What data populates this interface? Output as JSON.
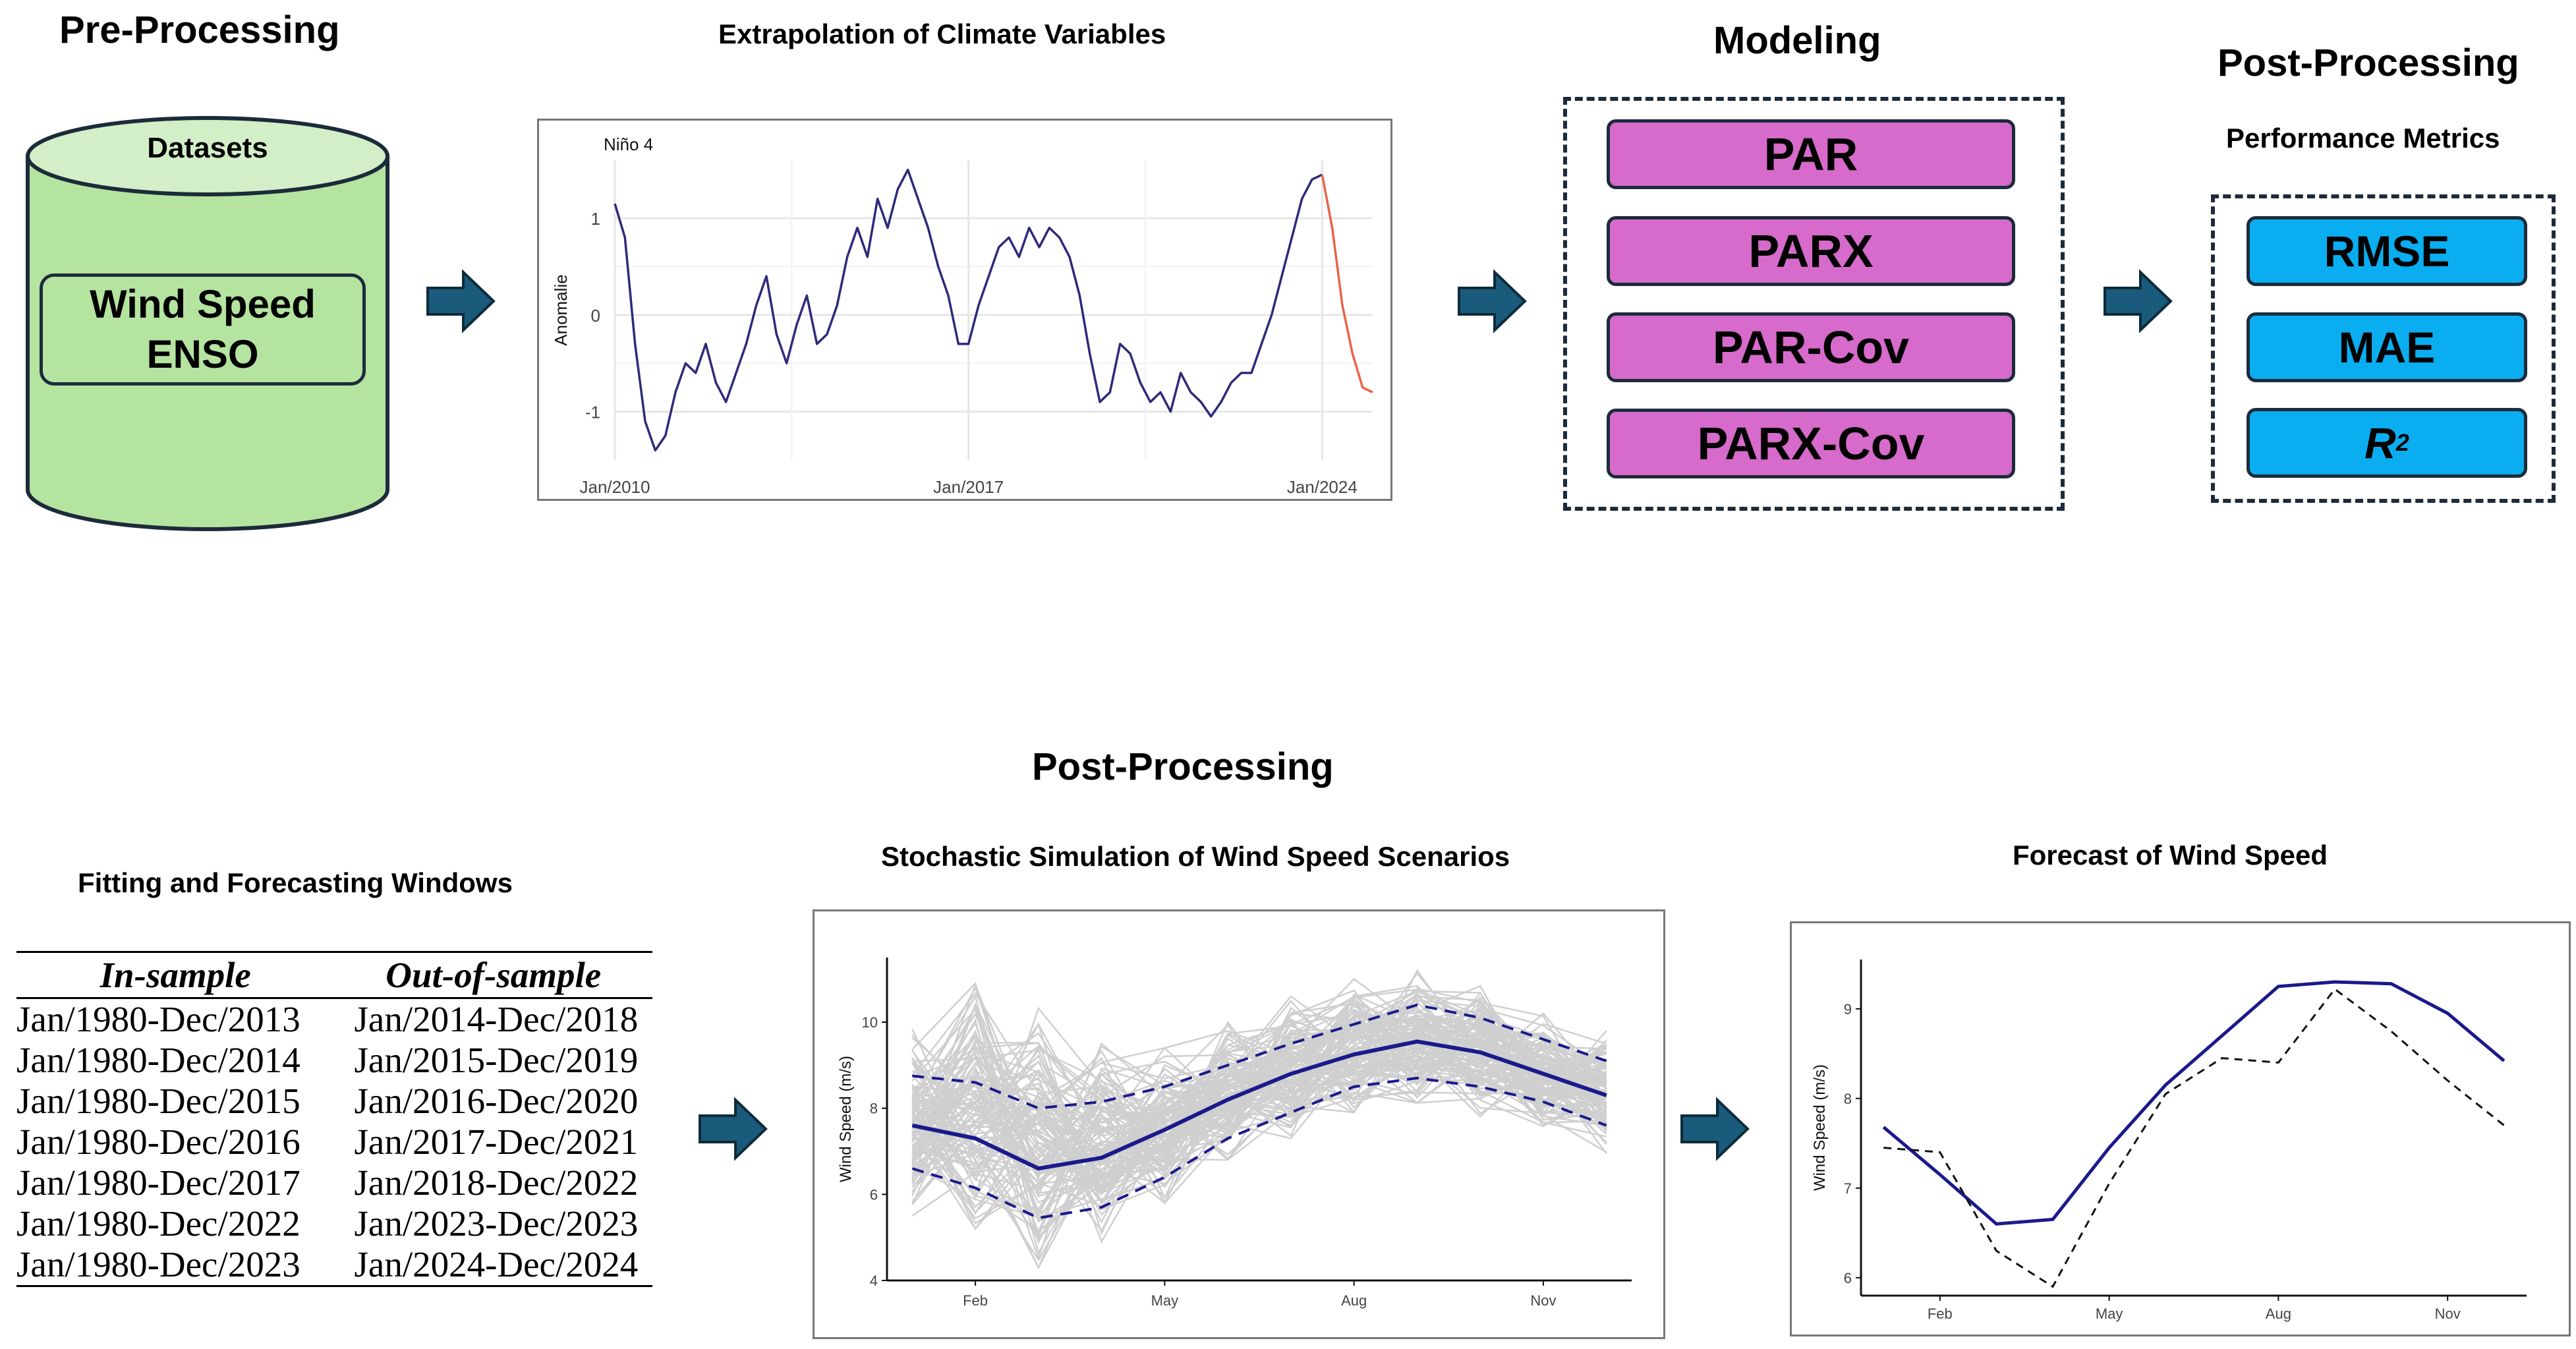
{
  "preprocessing": {
    "title": "Pre-Processing",
    "cylinder_label": "Datasets",
    "inner_line1": "Wind Speed",
    "inner_line2": "ENSO"
  },
  "extrapolation": {
    "title": "Extrapolation of Climate Variables",
    "chart_data": {
      "type": "line",
      "title": "Niño 4",
      "ylabel": "Anomalie",
      "xlabel": "",
      "x_ticks": [
        "Jan/2010",
        "Jan/2017",
        "Jan/2024"
      ],
      "y_ticks": [
        "1",
        "0",
        "-1"
      ],
      "ylim": [
        -1.5,
        1.6
      ],
      "xlim": [
        2010,
        2025
      ],
      "series": [
        {
          "name": "observed",
          "color": "#2e2a7a",
          "x": [
            2010.0,
            2010.2,
            2010.4,
            2010.6,
            2010.8,
            2011.0,
            2011.2,
            2011.4,
            2011.6,
            2011.8,
            2012.0,
            2012.2,
            2012.4,
            2012.6,
            2012.8,
            2013.0,
            2013.2,
            2013.4,
            2013.6,
            2013.8,
            2014.0,
            2014.2,
            2014.4,
            2014.6,
            2014.8,
            2015.0,
            2015.2,
            2015.4,
            2015.6,
            2015.8,
            2016.0,
            2016.2,
            2016.4,
            2016.6,
            2016.8,
            2017.0,
            2017.2,
            2017.4,
            2017.6,
            2017.8,
            2018.0,
            2018.2,
            2018.4,
            2018.6,
            2018.8,
            2019.0,
            2019.2,
            2019.4,
            2019.6,
            2019.8,
            2020.0,
            2020.2,
            2020.4,
            2020.6,
            2020.8,
            2021.0,
            2021.2,
            2021.4,
            2021.6,
            2021.8,
            2022.0,
            2022.2,
            2022.4,
            2022.6,
            2022.8,
            2023.0,
            2023.2,
            2023.4,
            2023.6,
            2023.8,
            2024.0
          ],
          "values": [
            1.15,
            0.8,
            -0.3,
            -1.1,
            -1.4,
            -1.25,
            -0.8,
            -0.5,
            -0.6,
            -0.3,
            -0.7,
            -0.9,
            -0.6,
            -0.3,
            0.1,
            0.4,
            -0.2,
            -0.5,
            -0.1,
            0.2,
            -0.3,
            -0.2,
            0.1,
            0.6,
            0.9,
            0.6,
            1.2,
            0.9,
            1.3,
            1.5,
            1.2,
            0.9,
            0.5,
            0.2,
            -0.3,
            -0.3,
            0.1,
            0.4,
            0.7,
            0.8,
            0.6,
            0.9,
            0.7,
            0.9,
            0.8,
            0.6,
            0.2,
            -0.4,
            -0.9,
            -0.8,
            -0.3,
            -0.4,
            -0.7,
            -0.9,
            -0.8,
            -1.0,
            -0.6,
            -0.8,
            -0.9,
            -1.05,
            -0.9,
            -0.7,
            -0.6,
            -0.6,
            -0.3,
            0.0,
            0.4,
            0.8,
            1.2,
            1.4,
            1.45
          ]
        },
        {
          "name": "extrapolated",
          "color": "#e8644a",
          "x": [
            2024.0,
            2024.2,
            2024.4,
            2024.6,
            2024.8,
            2025.0
          ],
          "values": [
            1.45,
            0.9,
            0.1,
            -0.4,
            -0.75,
            -0.8
          ]
        }
      ]
    }
  },
  "modeling": {
    "title": "Modeling",
    "models": [
      "PAR",
      "PARX",
      "PAR-Cov",
      "PARX-Cov"
    ]
  },
  "postprocessing_top": {
    "title": "Post-Processing",
    "subtitle": "Performance Metrics",
    "metrics": [
      "RMSE",
      "MAE",
      "R"
    ],
    "r2_superscript": "2"
  },
  "postprocessing_bottom": {
    "title": "Post-Processing"
  },
  "windows": {
    "title": "Fitting and Forecasting Windows",
    "headers": [
      "In-sample",
      "Out-of-sample"
    ],
    "rows": [
      [
        "Jan/1980-Dec/2013",
        "Jan/2014-Dec/2018"
      ],
      [
        "Jan/1980-Dec/2014",
        "Jan/2015-Dec/2019"
      ],
      [
        "Jan/1980-Dec/2015",
        "Jan/2016-Dec/2020"
      ],
      [
        "Jan/1980-Dec/2016",
        "Jan/2017-Dec/2021"
      ],
      [
        "Jan/1980-Dec/2017",
        "Jan/2018-Dec/2022"
      ],
      [
        "Jan/1980-Dec/2022",
        "Jan/2023-Dec/2023"
      ],
      [
        "Jan/1980-Dec/2023",
        "Jan/2024-Dec/2024"
      ]
    ]
  },
  "simulation": {
    "title": "Stochastic Simulation of Wind Speed Scenarios",
    "chart_data": {
      "type": "line",
      "ylabel": "Wind Speed (m/s)",
      "x_ticks": [
        "Feb",
        "May",
        "Aug",
        "Nov"
      ],
      "y_ticks": [
        "4",
        "6",
        "8",
        "10"
      ],
      "ylim": [
        4,
        11.5
      ],
      "months": [
        1,
        2,
        3,
        4,
        5,
        6,
        7,
        8,
        9,
        10,
        11,
        12
      ],
      "series": [
        {
          "name": "mean",
          "color": "#1a1a8c",
          "style": "solid",
          "values": [
            7.6,
            7.3,
            6.6,
            6.85,
            7.5,
            8.2,
            8.8,
            9.25,
            9.55,
            9.3,
            8.8,
            8.3
          ]
        },
        {
          "name": "upper",
          "color": "#1a1a8c",
          "style": "dashed",
          "values": [
            8.75,
            8.6,
            8.0,
            8.15,
            8.5,
            9.0,
            9.5,
            9.95,
            10.4,
            10.1,
            9.6,
            9.1
          ]
        },
        {
          "name": "lower",
          "color": "#1a1a8c",
          "style": "dashed",
          "values": [
            6.6,
            6.15,
            5.45,
            5.7,
            6.4,
            7.3,
            7.9,
            8.5,
            8.7,
            8.5,
            8.15,
            7.6
          ]
        }
      ],
      "scenario_band": {
        "color": "#cfcfcf",
        "min": [
          5.5,
          5.2,
          4.3,
          4.9,
          5.8,
          6.8,
          7.3,
          7.9,
          8.0,
          7.8,
          7.4,
          6.9
        ],
        "max": [
          10.1,
          11.0,
          10.4,
          9.5,
          9.4,
          10.0,
          10.6,
          11.0,
          11.2,
          10.9,
          10.2,
          9.8
        ]
      }
    }
  },
  "forecast": {
    "title": "Forecast of Wind Speed",
    "chart_data": {
      "type": "line",
      "ylabel": "Wind Speed (m/s)",
      "x_ticks": [
        "Feb",
        "May",
        "Aug",
        "Nov"
      ],
      "y_ticks": [
        "6",
        "7",
        "8",
        "9"
      ],
      "ylim": [
        5.8,
        9.55
      ],
      "months": [
        1,
        2,
        3,
        4,
        5,
        6,
        7,
        8,
        9,
        10,
        11,
        12
      ],
      "series": [
        {
          "name": "forecast",
          "color": "#1a1a8c",
          "style": "solid",
          "values": [
            7.68,
            7.15,
            6.6,
            6.65,
            7.45,
            8.15,
            8.7,
            9.25,
            9.3,
            9.28,
            8.95,
            8.42
          ]
        },
        {
          "name": "observed",
          "color": "#111111",
          "style": "dashed",
          "values": [
            7.45,
            7.4,
            6.3,
            5.9,
            7.05,
            8.05,
            8.45,
            8.4,
            9.22,
            8.75,
            8.2,
            7.7
          ]
        }
      ]
    }
  }
}
